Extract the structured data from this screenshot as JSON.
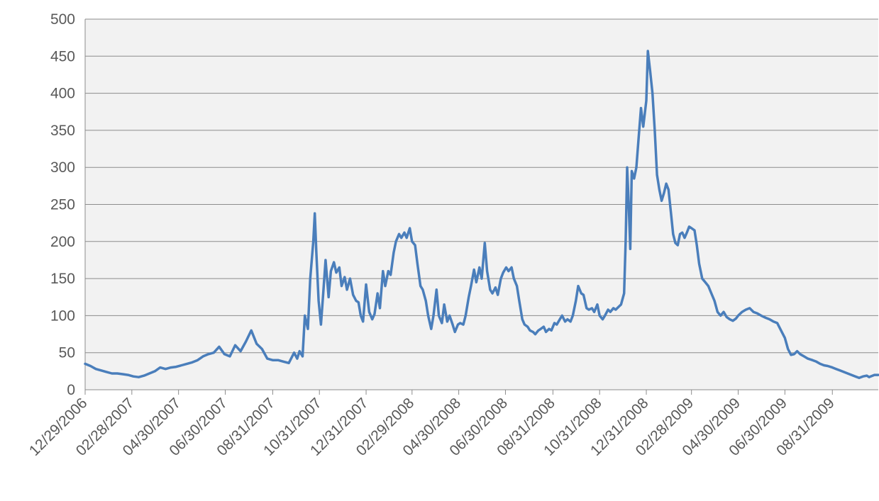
{
  "chart_data": {
    "type": "line",
    "title": "",
    "xlabel": "",
    "ylabel": "",
    "ylim": [
      0,
      500
    ],
    "y_ticks": [
      0,
      50,
      100,
      150,
      200,
      250,
      300,
      350,
      400,
      450,
      500
    ],
    "x_ticks": [
      "12/29/2006",
      "02/28/2007",
      "04/30/2007",
      "06/30/2007",
      "08/31/2007",
      "10/31/2007",
      "12/31/2007",
      "02/29/2008",
      "04/30/2008",
      "06/30/2008",
      "08/31/2008",
      "10/31/2008",
      "12/31/2008",
      "02/28/2009",
      "04/30/2009",
      "06/30/2009",
      "08/31/2009"
    ],
    "x_range": [
      "12/29/2006",
      "10/30/2009"
    ],
    "grid": true,
    "plot_background": "#f2f2f2",
    "series": [
      {
        "color": "#4a7ebb",
        "points": [
          [
            "2006-12-29",
            35
          ],
          [
            "2007-01-05",
            32
          ],
          [
            "2007-01-12",
            28
          ],
          [
            "2007-01-19",
            26
          ],
          [
            "2007-01-26",
            24
          ],
          [
            "2007-02-02",
            22
          ],
          [
            "2007-02-09",
            22
          ],
          [
            "2007-02-16",
            21
          ],
          [
            "2007-02-23",
            20
          ],
          [
            "2007-03-02",
            18
          ],
          [
            "2007-03-09",
            17
          ],
          [
            "2007-03-16",
            19
          ],
          [
            "2007-03-23",
            22
          ],
          [
            "2007-03-30",
            25
          ],
          [
            "2007-04-06",
            30
          ],
          [
            "2007-04-13",
            28
          ],
          [
            "2007-04-20",
            30
          ],
          [
            "2007-04-27",
            31
          ],
          [
            "2007-05-04",
            33
          ],
          [
            "2007-05-11",
            35
          ],
          [
            "2007-05-18",
            37
          ],
          [
            "2007-05-25",
            40
          ],
          [
            "2007-06-01",
            45
          ],
          [
            "2007-06-08",
            48
          ],
          [
            "2007-06-15",
            50
          ],
          [
            "2007-06-22",
            58
          ],
          [
            "2007-06-29",
            48
          ],
          [
            "2007-07-06",
            45
          ],
          [
            "2007-07-13",
            60
          ],
          [
            "2007-07-20",
            52
          ],
          [
            "2007-07-27",
            65
          ],
          [
            "2007-08-03",
            80
          ],
          [
            "2007-08-10",
            62
          ],
          [
            "2007-08-17",
            55
          ],
          [
            "2007-08-24",
            42
          ],
          [
            "2007-08-31",
            40
          ],
          [
            "2007-09-07",
            40
          ],
          [
            "2007-09-14",
            38
          ],
          [
            "2007-09-21",
            36
          ],
          [
            "2007-09-28",
            50
          ],
          [
            "2007-10-02",
            42
          ],
          [
            "2007-10-05",
            52
          ],
          [
            "2007-10-09",
            45
          ],
          [
            "2007-10-12",
            100
          ],
          [
            "2007-10-16",
            82
          ],
          [
            "2007-10-19",
            150
          ],
          [
            "2007-10-23",
            200
          ],
          [
            "2007-10-25",
            238
          ],
          [
            "2007-10-27",
            185
          ],
          [
            "2007-10-30",
            120
          ],
          [
            "2007-11-02",
            88
          ],
          [
            "2007-11-05",
            130
          ],
          [
            "2007-11-08",
            175
          ],
          [
            "2007-11-12",
            125
          ],
          [
            "2007-11-15",
            160
          ],
          [
            "2007-11-19",
            172
          ],
          [
            "2007-11-22",
            158
          ],
          [
            "2007-11-26",
            165
          ],
          [
            "2007-11-29",
            140
          ],
          [
            "2007-12-03",
            152
          ],
          [
            "2007-12-06",
            135
          ],
          [
            "2007-12-10",
            150
          ],
          [
            "2007-12-14",
            128
          ],
          [
            "2007-12-18",
            120
          ],
          [
            "2007-12-21",
            118
          ],
          [
            "2007-12-24",
            100
          ],
          [
            "2007-12-27",
            92
          ],
          [
            "2007-12-31",
            142
          ],
          [
            "2008-01-04",
            105
          ],
          [
            "2008-01-08",
            95
          ],
          [
            "2008-01-11",
            102
          ],
          [
            "2008-01-15",
            130
          ],
          [
            "2008-01-18",
            110
          ],
          [
            "2008-01-22",
            160
          ],
          [
            "2008-01-25",
            140
          ],
          [
            "2008-01-29",
            160
          ],
          [
            "2008-02-01",
            155
          ],
          [
            "2008-02-05",
            185
          ],
          [
            "2008-02-08",
            200
          ],
          [
            "2008-02-12",
            210
          ],
          [
            "2008-02-15",
            205
          ],
          [
            "2008-02-19",
            212
          ],
          [
            "2008-02-22",
            205
          ],
          [
            "2008-02-26",
            218
          ],
          [
            "2008-02-29",
            200
          ],
          [
            "2008-03-04",
            195
          ],
          [
            "2008-03-07",
            170
          ],
          [
            "2008-03-11",
            140
          ],
          [
            "2008-03-14",
            135
          ],
          [
            "2008-03-18",
            120
          ],
          [
            "2008-03-21",
            100
          ],
          [
            "2008-03-25",
            82
          ],
          [
            "2008-03-28",
            100
          ],
          [
            "2008-04-01",
            135
          ],
          [
            "2008-04-04",
            100
          ],
          [
            "2008-04-08",
            90
          ],
          [
            "2008-04-11",
            115
          ],
          [
            "2008-04-15",
            92
          ],
          [
            "2008-04-18",
            100
          ],
          [
            "2008-04-22",
            88
          ],
          [
            "2008-04-25",
            78
          ],
          [
            "2008-04-29",
            88
          ],
          [
            "2008-05-02",
            90
          ],
          [
            "2008-05-06",
            88
          ],
          [
            "2008-05-09",
            100
          ],
          [
            "2008-05-13",
            125
          ],
          [
            "2008-05-16",
            140
          ],
          [
            "2008-05-20",
            162
          ],
          [
            "2008-05-23",
            145
          ],
          [
            "2008-05-27",
            165
          ],
          [
            "2008-05-30",
            150
          ],
          [
            "2008-06-03",
            198
          ],
          [
            "2008-06-06",
            160
          ],
          [
            "2008-06-10",
            135
          ],
          [
            "2008-06-13",
            130
          ],
          [
            "2008-06-17",
            138
          ],
          [
            "2008-06-20",
            128
          ],
          [
            "2008-06-24",
            150
          ],
          [
            "2008-06-27",
            158
          ],
          [
            "2008-07-01",
            165
          ],
          [
            "2008-07-04",
            160
          ],
          [
            "2008-07-08",
            165
          ],
          [
            "2008-07-11",
            150
          ],
          [
            "2008-07-15",
            140
          ],
          [
            "2008-07-18",
            120
          ],
          [
            "2008-07-22",
            95
          ],
          [
            "2008-07-25",
            88
          ],
          [
            "2008-07-29",
            85
          ],
          [
            "2008-08-01",
            80
          ],
          [
            "2008-08-05",
            78
          ],
          [
            "2008-08-08",
            75
          ],
          [
            "2008-08-12",
            80
          ],
          [
            "2008-08-15",
            82
          ],
          [
            "2008-08-19",
            85
          ],
          [
            "2008-08-22",
            78
          ],
          [
            "2008-08-26",
            82
          ],
          [
            "2008-08-29",
            80
          ],
          [
            "2008-09-02",
            90
          ],
          [
            "2008-09-05",
            88
          ],
          [
            "2008-09-09",
            95
          ],
          [
            "2008-09-12",
            100
          ],
          [
            "2008-09-16",
            92
          ],
          [
            "2008-09-19",
            95
          ],
          [
            "2008-09-23",
            92
          ],
          [
            "2008-09-26",
            100
          ],
          [
            "2008-09-30",
            120
          ],
          [
            "2008-10-03",
            140
          ],
          [
            "2008-10-07",
            130
          ],
          [
            "2008-10-10",
            128
          ],
          [
            "2008-10-14",
            110
          ],
          [
            "2008-10-17",
            108
          ],
          [
            "2008-10-21",
            110
          ],
          [
            "2008-10-24",
            105
          ],
          [
            "2008-10-28",
            115
          ],
          [
            "2008-10-31",
            100
          ],
          [
            "2008-11-04",
            95
          ],
          [
            "2008-11-07",
            100
          ],
          [
            "2008-11-11",
            108
          ],
          [
            "2008-11-14",
            105
          ],
          [
            "2008-11-18",
            110
          ],
          [
            "2008-11-21",
            108
          ],
          [
            "2008-11-25",
            112
          ],
          [
            "2008-11-28",
            115
          ],
          [
            "2008-12-02",
            130
          ],
          [
            "2008-12-04",
            200
          ],
          [
            "2008-12-06",
            300
          ],
          [
            "2008-12-08",
            250
          ],
          [
            "2008-12-10",
            190
          ],
          [
            "2008-12-12",
            295
          ],
          [
            "2008-12-15",
            285
          ],
          [
            "2008-12-18",
            300
          ],
          [
            "2008-12-21",
            340
          ],
          [
            "2008-12-24",
            380
          ],
          [
            "2008-12-27",
            355
          ],
          [
            "2008-12-31",
            390
          ],
          [
            "2009-01-02",
            457
          ],
          [
            "2009-01-05",
            430
          ],
          [
            "2009-01-08",
            400
          ],
          [
            "2009-01-11",
            350
          ],
          [
            "2009-01-14",
            290
          ],
          [
            "2009-01-17",
            270
          ],
          [
            "2009-01-20",
            255
          ],
          [
            "2009-01-23",
            265
          ],
          [
            "2009-01-26",
            278
          ],
          [
            "2009-01-29",
            270
          ],
          [
            "2009-02-01",
            240
          ],
          [
            "2009-02-04",
            210
          ],
          [
            "2009-02-07",
            198
          ],
          [
            "2009-02-10",
            195
          ],
          [
            "2009-02-13",
            210
          ],
          [
            "2009-02-16",
            212
          ],
          [
            "2009-02-19",
            205
          ],
          [
            "2009-02-22",
            212
          ],
          [
            "2009-02-25",
            220
          ],
          [
            "2009-02-28",
            218
          ],
          [
            "2009-03-04",
            215
          ],
          [
            "2009-03-07",
            195
          ],
          [
            "2009-03-10",
            170
          ],
          [
            "2009-03-14",
            150
          ],
          [
            "2009-03-18",
            145
          ],
          [
            "2009-03-22",
            140
          ],
          [
            "2009-03-26",
            130
          ],
          [
            "2009-03-30",
            120
          ],
          [
            "2009-04-03",
            105
          ],
          [
            "2009-04-07",
            100
          ],
          [
            "2009-04-11",
            105
          ],
          [
            "2009-04-15",
            98
          ],
          [
            "2009-04-19",
            95
          ],
          [
            "2009-04-23",
            93
          ],
          [
            "2009-04-27",
            96
          ],
          [
            "2009-04-30",
            100
          ],
          [
            "2009-05-05",
            105
          ],
          [
            "2009-05-10",
            108
          ],
          [
            "2009-05-15",
            110
          ],
          [
            "2009-05-20",
            105
          ],
          [
            "2009-05-25",
            103
          ],
          [
            "2009-05-30",
            100
          ],
          [
            "2009-06-05",
            97
          ],
          [
            "2009-06-10",
            95
          ],
          [
            "2009-06-15",
            92
          ],
          [
            "2009-06-20",
            90
          ],
          [
            "2009-06-25",
            80
          ],
          [
            "2009-06-30",
            70
          ],
          [
            "2009-07-04",
            55
          ],
          [
            "2009-07-08",
            47
          ],
          [
            "2009-07-12",
            48
          ],
          [
            "2009-07-16",
            52
          ],
          [
            "2009-07-20",
            48
          ],
          [
            "2009-07-25",
            45
          ],
          [
            "2009-07-30",
            42
          ],
          [
            "2009-08-05",
            40
          ],
          [
            "2009-08-10",
            38
          ],
          [
            "2009-08-15",
            35
          ],
          [
            "2009-08-20",
            33
          ],
          [
            "2009-08-25",
            32
          ],
          [
            "2009-08-31",
            30
          ],
          [
            "2009-09-05",
            28
          ],
          [
            "2009-09-10",
            26
          ],
          [
            "2009-09-15",
            24
          ],
          [
            "2009-09-20",
            22
          ],
          [
            "2009-09-25",
            20
          ],
          [
            "2009-09-30",
            18
          ],
          [
            "2009-10-05",
            16
          ],
          [
            "2009-10-10",
            18
          ],
          [
            "2009-10-15",
            19
          ],
          [
            "2009-10-18",
            17
          ],
          [
            "2009-10-20",
            18
          ],
          [
            "2009-10-25",
            20
          ],
          [
            "2009-10-30",
            20
          ]
        ]
      }
    ]
  }
}
